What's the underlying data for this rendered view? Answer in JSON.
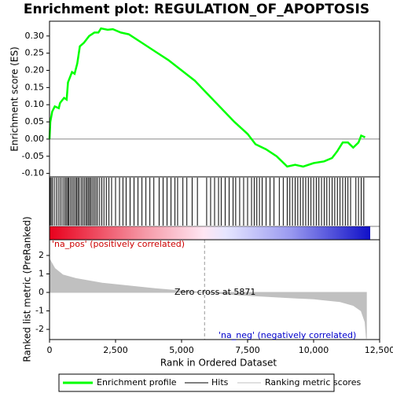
{
  "chart_data": [
    {
      "type": "line",
      "title": "Enrichment plot: REGULATION_OF_APOPTOSIS",
      "ylabel": "Enrichment score (ES)",
      "xlim": [
        0,
        12500
      ],
      "ylim": [
        -0.11,
        0.343
      ],
      "yticks": [
        {
          "value": -0.1,
          "label": "-0.10"
        },
        {
          "value": -0.05,
          "label": "-0.05"
        },
        {
          "value": 0,
          "label": "0.00"
        },
        {
          "value": 0.05,
          "label": "0.05"
        },
        {
          "value": 0.1,
          "label": "0.10"
        },
        {
          "value": 0.15,
          "label": "0.15"
        },
        {
          "value": 0.2,
          "label": "0.20"
        },
        {
          "value": 0.25,
          "label": "0.25"
        },
        {
          "value": 0.3,
          "label": "0.30"
        }
      ],
      "series": [
        {
          "name": "Enrichment profile",
          "color": "#00ff00",
          "x": [
            0,
            30,
            100,
            200,
            350,
            400,
            550,
            650,
            700,
            850,
            950,
            1050,
            1150,
            1300,
            1500,
            1700,
            1850,
            1950,
            2200,
            2400,
            2700,
            3000,
            3500,
            4000,
            4500,
            5000,
            5500,
            6000,
            6500,
            7000,
            7500,
            7800,
            8200,
            8600,
            9000,
            9300,
            9600,
            10000,
            10400,
            10700,
            10900,
            11100,
            11300,
            11500,
            11700,
            11800,
            11950
          ],
          "values": [
            0,
            0.05,
            0.08,
            0.095,
            0.09,
            0.105,
            0.12,
            0.115,
            0.165,
            0.195,
            0.19,
            0.22,
            0.27,
            0.28,
            0.3,
            0.31,
            0.31,
            0.322,
            0.318,
            0.32,
            0.31,
            0.305,
            0.28,
            0.255,
            0.23,
            0.2,
            0.17,
            0.13,
            0.09,
            0.05,
            0.015,
            -0.015,
            -0.03,
            -0.05,
            -0.08,
            -0.075,
            -0.08,
            -0.07,
            -0.065,
            -0.055,
            -0.035,
            -0.01,
            -0.01,
            -0.025,
            -0.01,
            0.01,
            0.005
          ]
        }
      ]
    },
    {
      "type": "hits",
      "name": "Hits",
      "x": [
        20,
        60,
        110,
        180,
        260,
        330,
        400,
        470,
        540,
        600,
        650,
        700,
        740,
        800,
        860,
        920,
        980,
        1030,
        1080,
        1130,
        1200,
        1260,
        1320,
        1380,
        1430,
        1480,
        1530,
        1580,
        1640,
        1700,
        1760,
        1820,
        1900,
        1980,
        2060,
        2150,
        2250,
        2350,
        2500,
        2650,
        2780,
        2900,
        3050,
        3200,
        3350,
        3500,
        3650,
        3800,
        3950,
        4150,
        4300,
        4450,
        4600,
        4750,
        4850,
        5050,
        5200,
        5400,
        5600,
        5950,
        6100,
        6250,
        6400,
        6500,
        6650,
        6800,
        6950,
        7050,
        7200,
        7350,
        7500,
        7650,
        7750,
        7850,
        7950,
        8050,
        8200,
        8350,
        8500,
        8700,
        8850,
        9000,
        9100,
        9200,
        9300,
        9400,
        9500,
        9600,
        9700,
        9800,
        9900,
        10000,
        10100,
        10200,
        10300,
        10400,
        10500,
        10600,
        10700,
        10800,
        10900,
        11000,
        11100,
        11200,
        11300,
        11400,
        11600,
        11700,
        11800,
        11900
      ]
    },
    {
      "type": "area",
      "ylabel": "Ranked list metric (PreRanked)",
      "xlabel": "Rank in Ordered Dataset",
      "xlim": [
        0,
        12500
      ],
      "ylim": [
        -2.55,
        2.85
      ],
      "xticks": [
        0,
        {
          "value": 2500,
          "label": "2,500"
        },
        {
          "value": 5000,
          "label": "5,000"
        },
        {
          "value": 7500,
          "label": "7,500"
        },
        {
          "value": 10000,
          "label": "10,000"
        },
        {
          "value": 12500,
          "label": "12,500"
        }
      ],
      "yticks": [
        -2,
        -1,
        0,
        1,
        2
      ],
      "series": [
        {
          "name": "Ranking metric scores",
          "color": "#c0c0c0",
          "x": [
            0,
            200,
            500,
            1000,
            2000,
            3000,
            4000,
            5000,
            5871,
            7000,
            8000,
            9000,
            10000,
            11000,
            11500,
            11800,
            11950,
            12000
          ],
          "values": [
            1.8,
            1.3,
            0.95,
            0.75,
            0.5,
            0.35,
            0.2,
            0.08,
            0,
            -0.12,
            -0.2,
            -0.28,
            -0.35,
            -0.5,
            -0.7,
            -1.0,
            -1.6,
            -2.5
          ]
        }
      ],
      "zero_cross": 5871,
      "annotations": [
        "'na_pos' (positively correlated)",
        "Zero cross at 5871",
        "'na_neg' (negatively correlated)"
      ]
    }
  ]
}
